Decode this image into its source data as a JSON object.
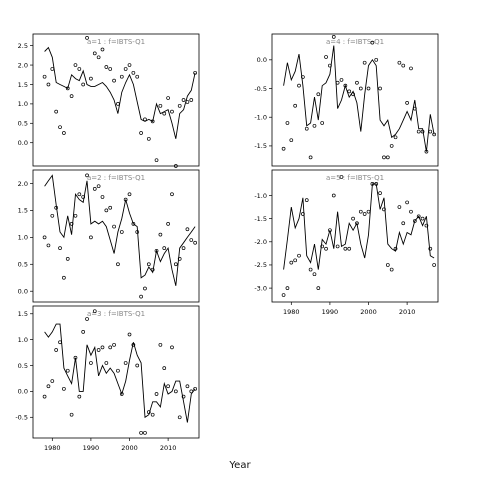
{
  "xlabel": "Year",
  "chart_data": [
    {
      "type": "line",
      "strip_label": "a=1 : f=IBTS-Q1",
      "xlim": [
        1975,
        2018
      ],
      "ylim": [
        -0.6,
        2.8
      ],
      "yticks": [
        0.0,
        0.5,
        1.0,
        1.5,
        2.0,
        2.5
      ],
      "xticks": [],
      "x": [
        1978,
        1979,
        1980,
        1981,
        1982,
        1983,
        1984,
        1985,
        1986,
        1987,
        1988,
        1989,
        1990,
        1991,
        1992,
        1993,
        1994,
        1995,
        1996,
        1997,
        1998,
        1999,
        2000,
        2001,
        2002,
        2003,
        2004,
        2005,
        2006,
        2007,
        2008,
        2009,
        2010,
        2011,
        2012,
        2013,
        2014,
        2015,
        2016,
        2017
      ],
      "fit": [
        2.35,
        2.45,
        2.2,
        1.55,
        1.5,
        1.45,
        1.4,
        1.75,
        1.65,
        1.6,
        1.85,
        1.5,
        1.45,
        1.45,
        1.5,
        1.55,
        1.45,
        1.3,
        1.1,
        0.75,
        1.3,
        1.55,
        1.75,
        1.5,
        1.05,
        0.6,
        0.55,
        0.6,
        0.55,
        1.0,
        0.75,
        0.8,
        0.85,
        0.5,
        0.1,
        0.75,
        0.85,
        1.2,
        1.35,
        1.8
      ],
      "observed": [
        1.7,
        1.5,
        1.9,
        0.8,
        0.4,
        0.25,
        1.4,
        1.2,
        2.0,
        1.9,
        1.5,
        2.7,
        1.65,
        2.3,
        2.2,
        2.4,
        1.95,
        1.9,
        1.6,
        1.0,
        1.7,
        1.9,
        2.0,
        1.8,
        1.7,
        0.25,
        0.6,
        0.1,
        0.55,
        -0.45,
        0.95,
        0.75,
        1.15,
        0.8,
        -0.6,
        0.95,
        1.1,
        1.05,
        1.1,
        1.8
      ]
    },
    {
      "type": "line",
      "strip_label": "a=2 : f=IBTS-Q1",
      "xlim": [
        1975,
        2018
      ],
      "ylim": [
        -0.2,
        2.25
      ],
      "yticks": [
        0.0,
        0.5,
        1.0,
        1.5,
        2.0
      ],
      "xticks": [],
      "x": [
        1978,
        1979,
        1980,
        1981,
        1982,
        1983,
        1984,
        1985,
        1986,
        1987,
        1988,
        1989,
        1990,
        1991,
        1992,
        1993,
        1994,
        1995,
        1996,
        1997,
        1998,
        1999,
        2000,
        2001,
        2002,
        2003,
        2004,
        2005,
        2006,
        2007,
        2008,
        2009,
        2010,
        2011,
        2012,
        2013,
        2014,
        2015,
        2016,
        2017
      ],
      "fit": [
        1.95,
        2.05,
        2.15,
        1.6,
        1.1,
        1.0,
        1.4,
        1.05,
        1.8,
        1.7,
        1.65,
        2.05,
        1.25,
        1.3,
        1.25,
        1.3,
        1.2,
        0.95,
        0.7,
        1.1,
        1.35,
        1.7,
        1.45,
        1.25,
        1.2,
        0.25,
        0.3,
        0.45,
        0.35,
        0.75,
        0.55,
        0.7,
        0.8,
        0.4,
        0.1,
        0.8,
        0.9,
        1.0,
        1.1,
        1.2
      ],
      "observed": [
        1.0,
        0.85,
        1.4,
        1.55,
        0.8,
        0.25,
        0.6,
        1.25,
        1.4,
        1.8,
        1.75,
        2.15,
        1.0,
        1.9,
        1.95,
        1.75,
        1.5,
        1.55,
        1.2,
        0.5,
        1.1,
        1.7,
        1.8,
        1.25,
        1.1,
        -0.1,
        0.05,
        0.5,
        0.4,
        0.75,
        1.05,
        0.8,
        1.25,
        1.8,
        0.5,
        0.6,
        0.8,
        1.15,
        0.95,
        0.9
      ]
    },
    {
      "type": "line",
      "strip_label": "a=3 : f=IBTS-Q1",
      "xlim": [
        1975,
        2018
      ],
      "ylim": [
        -0.9,
        1.65
      ],
      "yticks": [
        -0.5,
        0.0,
        0.5,
        1.0,
        1.5
      ],
      "xticks": [
        1980,
        1990,
        2000,
        2010
      ],
      "x": [
        1978,
        1979,
        1980,
        1981,
        1982,
        1983,
        1984,
        1985,
        1986,
        1987,
        1988,
        1989,
        1990,
        1991,
        1992,
        1993,
        1994,
        1995,
        1996,
        1997,
        1998,
        1999,
        2000,
        2001,
        2002,
        2003,
        2004,
        2005,
        2006,
        2007,
        2008,
        2009,
        2010,
        2011,
        2012,
        2013,
        2014,
        2015,
        2016,
        2017
      ],
      "fit": [
        1.15,
        1.05,
        1.15,
        1.3,
        1.3,
        0.45,
        0.3,
        0.15,
        0.65,
        0.0,
        0.0,
        0.9,
        0.7,
        0.85,
        0.3,
        0.5,
        0.35,
        0.45,
        0.35,
        0.15,
        -0.05,
        0.2,
        0.6,
        0.95,
        0.7,
        0.55,
        -0.5,
        -0.45,
        -0.2,
        -0.2,
        -0.3,
        0.15,
        -0.05,
        0.0,
        0.2,
        0.2,
        -0.2,
        -0.6,
        -0.05,
        0.05
      ],
      "observed": [
        -0.1,
        0.1,
        0.2,
        0.8,
        0.95,
        0.05,
        0.4,
        -0.45,
        0.65,
        -0.1,
        1.15,
        1.4,
        0.55,
        1.55,
        0.8,
        0.85,
        0.55,
        0.85,
        0.9,
        0.4,
        -0.05,
        0.55,
        1.1,
        0.9,
        0.5,
        -0.8,
        -0.8,
        -0.4,
        -0.45,
        -0.05,
        0.9,
        0.45,
        0.1,
        0.85,
        0.0,
        -0.5,
        -0.1,
        0.1,
        0.0,
        0.05
      ]
    },
    {
      "type": "line",
      "strip_label": "a=4 : f=IBTS-Q1",
      "xlim": [
        1975,
        2018
      ],
      "ylim": [
        -1.85,
        0.45
      ],
      "yticks": [
        -1.5,
        -1.0,
        -0.5,
        0.0
      ],
      "xticks": [],
      "x": [
        1978,
        1979,
        1980,
        1981,
        1982,
        1983,
        1984,
        1985,
        1986,
        1987,
        1988,
        1989,
        1990,
        1991,
        1992,
        1993,
        1994,
        1995,
        1996,
        1997,
        1998,
        1999,
        2000,
        2001,
        2002,
        2003,
        2004,
        2005,
        2006,
        2007,
        2008,
        2009,
        2010,
        2011,
        2012,
        2013,
        2014,
        2015,
        2016,
        2017
      ],
      "fit": [
        -0.45,
        -0.05,
        -0.35,
        -0.2,
        0.1,
        -0.45,
        -1.15,
        -1.1,
        -0.65,
        -1.05,
        -0.45,
        -0.4,
        -0.25,
        0.25,
        -0.85,
        -0.7,
        -0.45,
        -0.65,
        -0.55,
        -0.75,
        -1.25,
        -0.6,
        -0.1,
        0.0,
        -0.1,
        -1.05,
        -1.15,
        -1.05,
        -1.35,
        -1.3,
        -1.2,
        -1.05,
        -0.9,
        -1.05,
        -0.7,
        -1.2,
        -1.2,
        -1.6,
        -0.95,
        -1.3
      ],
      "observed": [
        -1.55,
        -1.1,
        -1.4,
        -0.8,
        -0.45,
        -0.3,
        -1.2,
        -1.7,
        -1.15,
        -0.6,
        -1.1,
        0.05,
        -0.1,
        0.4,
        -0.4,
        -0.35,
        -0.45,
        -0.55,
        -0.6,
        -0.4,
        -0.5,
        -0.05,
        -0.5,
        0.3,
        0.0,
        -0.5,
        -1.7,
        -1.7,
        -1.5,
        -1.35,
        -0.05,
        -0.1,
        -0.75,
        -0.15,
        -0.85,
        -1.25,
        -1.25,
        -1.6,
        -1.25,
        -1.3
      ]
    },
    {
      "type": "line",
      "strip_label": "a=5 : f=IBTS-Q1",
      "xlim": [
        1975,
        2018
      ],
      "ylim": [
        -3.3,
        -0.45
      ],
      "yticks": [
        -3.0,
        -2.5,
        -2.0,
        -1.5,
        -1.0
      ],
      "xticks": [
        1980,
        1990,
        2000,
        2010
      ],
      "x": [
        1978,
        1979,
        1980,
        1981,
        1982,
        1983,
        1984,
        1985,
        1986,
        1987,
        1988,
        1989,
        1990,
        1991,
        1992,
        1993,
        1994,
        1995,
        1996,
        1997,
        1998,
        1999,
        2000,
        2001,
        2002,
        2003,
        2004,
        2005,
        2006,
        2007,
        2008,
        2009,
        2010,
        2011,
        2012,
        2013,
        2014,
        2015,
        2016,
        2017
      ],
      "fit": [
        -2.6,
        -1.95,
        -1.25,
        -1.7,
        -1.5,
        -1.05,
        -2.3,
        -2.45,
        -2.05,
        -2.6,
        -1.95,
        -2.05,
        -1.75,
        -2.15,
        -1.35,
        -2.1,
        -2.05,
        -1.6,
        -1.75,
        -1.6,
        -2.05,
        -2.35,
        -1.85,
        -0.75,
        -0.75,
        -1.3,
        -1.05,
        -2.05,
        -2.15,
        -2.2,
        -1.8,
        -2.05,
        -1.8,
        -1.85,
        -1.55,
        -1.45,
        -1.65,
        -1.45,
        -2.3,
        -2.35
      ],
      "observed": [
        -3.15,
        -3.0,
        -2.45,
        -2.4,
        -2.3,
        -1.4,
        -1.1,
        -2.6,
        -2.7,
        -3.0,
        -2.1,
        -2.15,
        -1.75,
        -1.0,
        -2.1,
        -0.6,
        -2.15,
        -2.15,
        -1.5,
        -1.6,
        -1.35,
        -1.4,
        -1.35,
        -0.75,
        -0.75,
        -0.95,
        -1.3,
        -2.5,
        -2.6,
        -2.15,
        -1.25,
        -1.6,
        -1.15,
        -1.35,
        -1.55,
        -1.45,
        -1.5,
        -1.65,
        -2.15,
        -2.5
      ]
    }
  ]
}
